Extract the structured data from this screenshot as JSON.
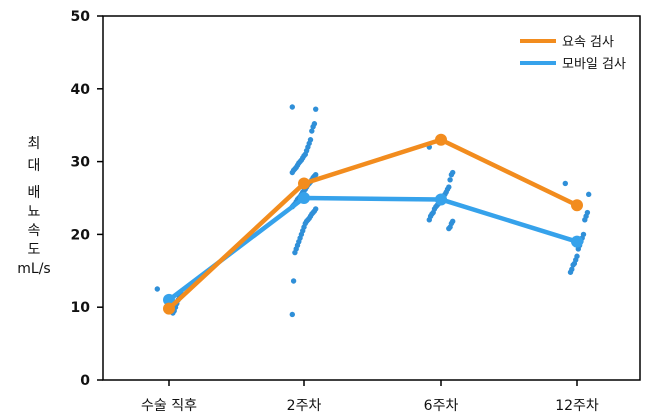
{
  "chart_data": {
    "type": "line",
    "title": "",
    "xlabel": "",
    "ylabel_lines": [
      "최",
      "대",
      "배",
      "뇨",
      "속",
      "도",
      "mL/s"
    ],
    "ylim": [
      0,
      50
    ],
    "yticks": [
      0,
      10,
      20,
      30,
      40,
      50
    ],
    "categories": [
      "수술 직후",
      "2주차",
      "6주차",
      "12주차"
    ],
    "grid": false,
    "legend_position": "top-right",
    "series": [
      {
        "name": "요속 검사",
        "color": "#f28c1e",
        "values": [
          9.8,
          27,
          33,
          24
        ]
      },
      {
        "name": "모바일 검사",
        "color": "#36a2eb",
        "values": [
          11,
          25,
          24.8,
          19
        ]
      }
    ],
    "scatter": {
      "series": "모바일 검사",
      "color": "#2f8fd8",
      "points": [
        [
          12.5,
          12,
          11.5,
          11,
          10.5,
          10,
          9.5,
          9.2
        ],
        [
          37.5,
          37.2,
          35.2,
          34.8,
          34.2,
          33,
          32.5,
          32,
          31.5,
          31,
          30.8,
          30.5,
          30.2,
          30,
          29.8,
          29.5,
          29.2,
          29,
          28.8,
          28.5,
          28.2,
          28,
          27.8,
          27.5,
          27.2,
          27,
          26.8,
          26.5,
          26.2,
          26,
          25.8,
          25.5,
          25.2,
          25,
          24.8,
          24.5,
          24.2,
          24,
          23.8,
          23.5,
          23.2,
          23,
          22.8,
          22.5,
          22.2,
          22,
          21.8,
          21.5,
          21,
          20.5,
          20,
          19.5,
          19,
          18.5,
          18,
          17.5,
          13.6,
          9
        ],
        [
          32,
          28.5,
          28.2,
          27.5,
          26.5,
          26.2,
          25.8,
          25.5,
          25.2,
          25,
          24.8,
          24.5,
          24.2,
          24,
          23.8,
          23.5,
          23,
          22.8,
          22.5,
          22,
          21.8,
          21.5,
          21,
          20.8
        ],
        [
          27,
          25.5,
          23,
          22.5,
          22,
          20,
          19.5,
          19,
          18.5,
          18,
          17,
          16.5,
          16,
          15.8,
          15.2,
          14.8
        ]
      ]
    }
  }
}
